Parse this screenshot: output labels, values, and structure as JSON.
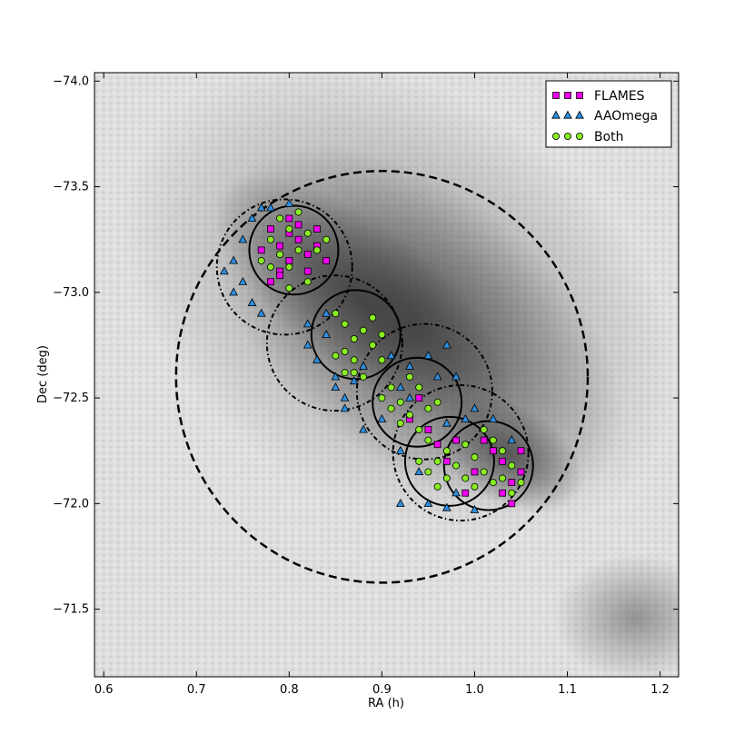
{
  "chart_data": {
    "type": "scatter",
    "title": "",
    "xlabel": "RA (h)",
    "ylabel": "Dec (deg)",
    "xlim": [
      0.59,
      1.22
    ],
    "ylim": [
      -71.18,
      -74.04
    ],
    "x_ticks": [
      0.6,
      0.7,
      0.8,
      0.9,
      1.0,
      1.1,
      1.2
    ],
    "x_tick_labels": [
      "0.6",
      "0.7",
      "0.8",
      "0.9",
      "1.0",
      "1.1",
      "1.2"
    ],
    "y_ticks": [
      -74.0,
      -73.5,
      -73.0,
      -72.5,
      -72.0,
      -71.5
    ],
    "y_tick_labels": [
      "−74.0",
      "−73.5",
      "−73.0",
      "−72.5",
      "−72.0",
      "−71.5"
    ],
    "grid": false,
    "legend_position": "top-right",
    "background": "greyscale hexbin stellar density map",
    "series": [
      {
        "name": "FLAMES",
        "marker": "square",
        "color": "#ee00ee",
        "points": [
          [
            0.78,
            -73.3
          ],
          [
            0.79,
            -73.22
          ],
          [
            0.8,
            -73.28
          ],
          [
            0.81,
            -73.25
          ],
          [
            0.82,
            -73.18
          ],
          [
            0.79,
            -73.1
          ],
          [
            0.83,
            -73.22
          ],
          [
            0.8,
            -73.15
          ],
          [
            0.77,
            -73.2
          ],
          [
            0.81,
            -73.32
          ],
          [
            0.84,
            -73.15
          ],
          [
            0.83,
            -73.3
          ],
          [
            0.78,
            -73.05
          ],
          [
            0.79,
            -73.08
          ],
          [
            0.82,
            -73.1
          ],
          [
            0.8,
            -73.35
          ],
          [
            0.93,
            -72.4
          ],
          [
            0.95,
            -72.35
          ],
          [
            0.94,
            -72.5
          ],
          [
            0.98,
            -72.3
          ],
          [
            1.02,
            -72.25
          ],
          [
            1.03,
            -72.2
          ],
          [
            1.0,
            -72.15
          ],
          [
            1.04,
            -72.1
          ],
          [
            1.05,
            -72.15
          ],
          [
            1.01,
            -72.3
          ],
          [
            1.03,
            -72.05
          ],
          [
            0.99,
            -72.05
          ],
          [
            1.05,
            -72.25
          ],
          [
            0.97,
            -72.2
          ],
          [
            1.04,
            -72.0
          ],
          [
            0.96,
            -72.28
          ]
        ]
      },
      {
        "name": "AAOmega",
        "marker": "triangle",
        "color": "#2e8fe0",
        "points": [
          [
            0.74,
            -73.15
          ],
          [
            0.75,
            -73.25
          ],
          [
            0.74,
            -73.0
          ],
          [
            0.76,
            -73.35
          ],
          [
            0.77,
            -73.4
          ],
          [
            0.75,
            -73.05
          ],
          [
            0.76,
            -72.95
          ],
          [
            0.78,
            -73.4
          ],
          [
            0.8,
            -73.42
          ],
          [
            0.73,
            -73.1
          ],
          [
            0.77,
            -72.9
          ],
          [
            0.82,
            -72.85
          ],
          [
            0.84,
            -72.8
          ],
          [
            0.83,
            -72.68
          ],
          [
            0.85,
            -72.6
          ],
          [
            0.86,
            -72.5
          ],
          [
            0.82,
            -72.75
          ],
          [
            0.86,
            -72.45
          ],
          [
            0.88,
            -72.35
          ],
          [
            0.9,
            -72.4
          ],
          [
            0.92,
            -72.55
          ],
          [
            0.93,
            -72.65
          ],
          [
            0.95,
            -72.7
          ],
          [
            0.97,
            -72.75
          ],
          [
            0.96,
            -72.6
          ],
          [
            0.98,
            -72.6
          ],
          [
            1.0,
            -72.45
          ],
          [
            0.99,
            -72.4
          ],
          [
            0.97,
            -72.38
          ],
          [
            1.02,
            -72.4
          ],
          [
            1.04,
            -72.3
          ],
          [
            0.95,
            -72.0
          ],
          [
            0.97,
            -71.98
          ],
          [
            0.98,
            -72.05
          ],
          [
            0.92,
            -72.0
          ],
          [
            0.94,
            -72.15
          ],
          [
            1.0,
            -71.97
          ],
          [
            0.92,
            -72.25
          ],
          [
            0.93,
            -72.5
          ],
          [
            0.91,
            -72.7
          ],
          [
            0.87,
            -72.58
          ],
          [
            0.85,
            -72.55
          ],
          [
            0.88,
            -72.65
          ],
          [
            0.84,
            -72.9
          ]
        ]
      },
      {
        "name": "Both",
        "marker": "circle",
        "color": "#88ee22",
        "points": [
          [
            0.78,
            -73.25
          ],
          [
            0.79,
            -73.18
          ],
          [
            0.8,
            -73.3
          ],
          [
            0.81,
            -73.2
          ],
          [
            0.8,
            -73.12
          ],
          [
            0.82,
            -73.28
          ],
          [
            0.83,
            -73.2
          ],
          [
            0.79,
            -73.35
          ],
          [
            0.77,
            -73.15
          ],
          [
            0.81,
            -73.38
          ],
          [
            0.84,
            -73.25
          ],
          [
            0.82,
            -73.05
          ],
          [
            0.8,
            -73.02
          ],
          [
            0.78,
            -73.12
          ],
          [
            0.85,
            -72.9
          ],
          [
            0.86,
            -72.85
          ],
          [
            0.87,
            -72.78
          ],
          [
            0.88,
            -72.82
          ],
          [
            0.86,
            -72.72
          ],
          [
            0.87,
            -72.68
          ],
          [
            0.89,
            -72.75
          ],
          [
            0.85,
            -72.7
          ],
          [
            0.88,
            -72.6
          ],
          [
            0.9,
            -72.68
          ],
          [
            0.87,
            -72.62
          ],
          [
            0.89,
            -72.88
          ],
          [
            0.9,
            -72.8
          ],
          [
            0.86,
            -72.62
          ],
          [
            0.91,
            -72.55
          ],
          [
            0.92,
            -72.48
          ],
          [
            0.93,
            -72.42
          ],
          [
            0.91,
            -72.45
          ],
          [
            0.94,
            -72.55
          ],
          [
            0.92,
            -72.38
          ],
          [
            0.94,
            -72.35
          ],
          [
            0.95,
            -72.45
          ],
          [
            0.93,
            -72.6
          ],
          [
            0.96,
            -72.48
          ],
          [
            0.9,
            -72.5
          ],
          [
            0.95,
            -72.3
          ],
          [
            0.96,
            -72.2
          ],
          [
            0.95,
            -72.15
          ],
          [
            0.97,
            -72.25
          ],
          [
            0.96,
            -72.08
          ],
          [
            0.98,
            -72.18
          ],
          [
            0.97,
            -72.12
          ],
          [
            0.94,
            -72.2
          ],
          [
            1.0,
            -72.22
          ],
          [
            1.01,
            -72.15
          ],
          [
            1.02,
            -72.1
          ],
          [
            1.0,
            -72.08
          ],
          [
            1.03,
            -72.25
          ],
          [
            1.01,
            -72.35
          ],
          [
            1.04,
            -72.18
          ],
          [
            1.02,
            -72.3
          ],
          [
            0.99,
            -72.28
          ],
          [
            1.05,
            -72.1
          ],
          [
            1.03,
            -72.12
          ],
          [
            0.99,
            -72.12
          ],
          [
            1.04,
            -72.05
          ]
        ]
      }
    ],
    "fields": [
      {
        "style": "solid",
        "center": [
          0.805,
          -73.2
        ],
        "radius_ra": 0.048
      },
      {
        "style": "solid",
        "center": [
          0.872,
          -72.8
        ],
        "radius_ra": 0.048
      },
      {
        "style": "solid",
        "center": [
          0.938,
          -72.48
        ],
        "radius_ra": 0.048
      },
      {
        "style": "solid",
        "center": [
          0.973,
          -72.2
        ],
        "radius_ra": 0.048
      },
      {
        "style": "solid",
        "center": [
          1.015,
          -72.18
        ],
        "radius_ra": 0.048
      },
      {
        "style": "dashdot",
        "center": [
          0.795,
          -73.12
        ],
        "radius_ra": 0.073
      },
      {
        "style": "dashdot",
        "center": [
          0.849,
          -72.76
        ],
        "radius_ra": 0.073
      },
      {
        "style": "dashdot",
        "center": [
          0.946,
          -72.53
        ],
        "radius_ra": 0.073
      },
      {
        "style": "dashdot",
        "center": [
          0.985,
          -72.24
        ],
        "radius_ra": 0.073
      },
      {
        "style": "dashed",
        "center": [
          0.9,
          -72.6
        ],
        "radius_ra": 0.222
      }
    ]
  }
}
